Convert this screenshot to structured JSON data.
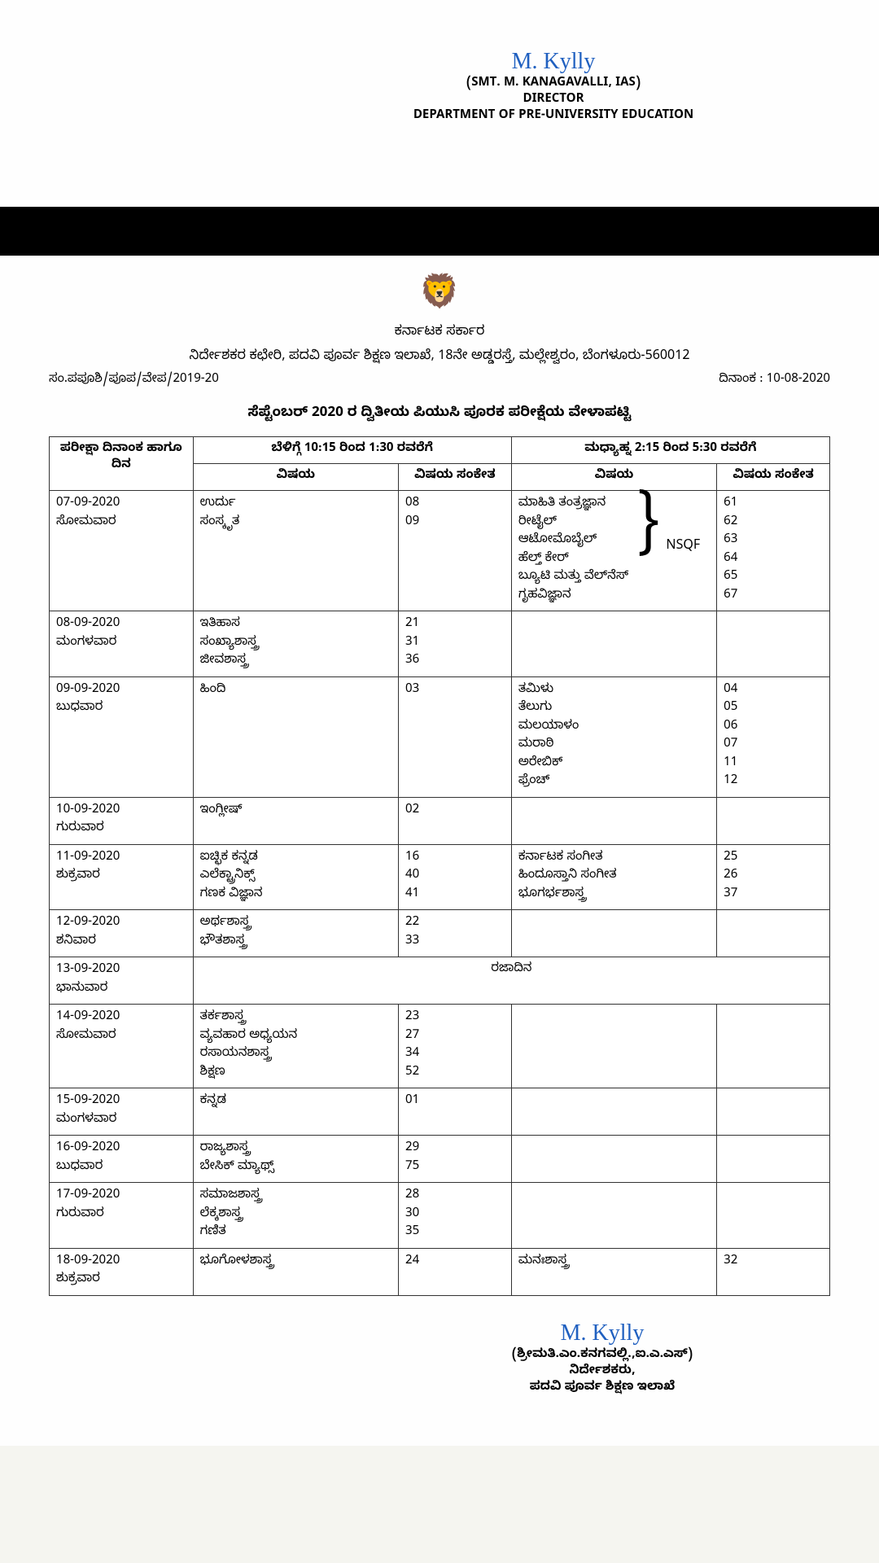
{
  "signature_top": {
    "signature_text": "M. Kylly",
    "name": "(SMT. M. KANAGAVALLI, IAS)",
    "title": "DIRECTOR",
    "department": "DEPARTMENT OF PRE-UNIVERSITY EDUCATION"
  },
  "header": {
    "govt": "ಕರ್ನಾಟಕ ಸರ್ಕಾರ",
    "office": "ನಿರ್ದೇಶಕರ ಕಛೇರಿ, ಪದವಿ ಪೂರ್ವ ಶಿಕ್ಷಣ ಇಲಾಖೆ, 18ನೇ ಅಡ್ಡರಸ್ತೆ, ಮಲ್ಲೇಶ್ವರಂ, ಬೆಂಗಳೂರು-560012",
    "ref": "ಸಂ.ಪಪೂಶಿ/ಪೂಪ/ವೇಪ/2019-20",
    "date_label": "ದಿನಾಂಕ : 10-08-2020",
    "title": "ಸೆಪ್ಟೆಂಬರ್ 2020 ರ ದ್ವಿತೀಯ ಪಿಯುಸಿ ಪೂರಕ ಪರೀಕ್ಷೆಯ ವೇಳಾಪಟ್ಟಿ"
  },
  "table": {
    "columns": {
      "date_header": "ಪರೀಕ್ಷಾ ದಿನಾಂಕ ಹಾಗೂ ದಿನ",
      "morning_header": "ಬೆಳಿಗ್ಗೆ 10:15 ರಿಂದ 1:30 ರವರೆಗೆ",
      "afternoon_header": "ಮಧ್ಯಾಹ್ನ 2:15 ರಿಂದ 5:30 ರವರೆಗೆ",
      "subject": "ವಿಷಯ",
      "code": "ವಿಷಯ ಸಂಕೇತ"
    },
    "rows": [
      {
        "date": "07-09-2020",
        "day": "ಸೋಮವಾರ",
        "morning_subjects": "ಉರ್ದು\nಸಂಸ್ಕೃತ",
        "morning_codes": "08\n09",
        "afternoon_subjects": "ಮಾಹಿತಿ ತಂತ್ರಜ್ಞಾನ\nರೀಟೈಲ್\nಆಟೋಮೊಬೈಲ್\nಹೆಲ್ತ್ ಕೇರ್\nಬ್ಯೂಟಿ ಮತ್ತು ವೆಲ್‌ನೆಸ್\nಗೃಹವಿಜ್ಞಾನ",
        "afternoon_nsqf": "NSQF",
        "afternoon_codes": "61\n62\n63\n64\n65\n67"
      },
      {
        "date": "08-09-2020",
        "day": "ಮಂಗಳವಾರ",
        "morning_subjects": "ಇತಿಹಾಸ\nಸಂಖ್ಯಾಶಾಸ್ತ್ರ\nಜೀವಶಾಸ್ತ್ರ",
        "morning_codes": "21\n31\n36",
        "afternoon_subjects": "",
        "afternoon_codes": ""
      },
      {
        "date": "09-09-2020",
        "day": "ಬುಧವಾರ",
        "morning_subjects": "ಹಿಂದಿ",
        "morning_codes": "03",
        "afternoon_subjects": "ತಮಿಳು\nತೆಲುಗು\nಮಲಯಾಳಂ\nಮರಾಠಿ\nಅರೇಬಿಕ್\nಫ್ರೆಂಚ್",
        "afternoon_codes": "04\n05\n06\n07\n11\n12"
      },
      {
        "date": "10-09-2020",
        "day": "ಗುರುವಾರ",
        "morning_subjects": "ಇಂಗ್ಲೀಷ್",
        "morning_codes": "02",
        "afternoon_subjects": "",
        "afternoon_codes": ""
      },
      {
        "date": "11-09-2020",
        "day": "ಶುಕ್ರವಾರ",
        "morning_subjects": "ಐಚ್ಛಿಕ ಕನ್ನಡ\nಎಲೆಕ್ಟ್ರಾನಿಕ್ಸ್\nಗಣಕ ವಿಜ್ಞಾನ",
        "morning_codes": "16\n40\n41",
        "afternoon_subjects": "ಕರ್ನಾಟಕ ಸಂಗೀತ\nಹಿಂದೂಸ್ತಾನಿ ಸಂಗೀತ\nಭೂಗರ್ಭಶಾಸ್ತ್ರ",
        "afternoon_codes": "25\n26\n37"
      },
      {
        "date": "12-09-2020",
        "day": "ಶನಿವಾರ",
        "morning_subjects": "ಅರ್ಥಶಾಸ್ತ್ರ\nಭೌತಶಾಸ್ತ್ರ",
        "morning_codes": "22\n33",
        "afternoon_subjects": "",
        "afternoon_codes": ""
      },
      {
        "date": "13-09-2020",
        "day": "ಭಾನುವಾರ",
        "holiday": "ರಜಾದಿನ"
      },
      {
        "date": "14-09-2020",
        "day": "ಸೋಮವಾರ",
        "morning_subjects": "ತರ್ಕಶಾಸ್ತ್ರ\nವ್ಯವಹಾರ ಅಧ್ಯಯನ\nರಸಾಯನಶಾಸ್ತ್ರ\nಶಿಕ್ಷಣ",
        "morning_codes": "23\n27\n34\n52",
        "afternoon_subjects": "",
        "afternoon_codes": ""
      },
      {
        "date": "15-09-2020",
        "day": "ಮಂಗಳವಾರ",
        "morning_subjects": "ಕನ್ನಡ",
        "morning_codes": "01",
        "afternoon_subjects": "",
        "afternoon_codes": ""
      },
      {
        "date": "16-09-2020",
        "day": "ಬುಧವಾರ",
        "morning_subjects": "ರಾಜ್ಯಶಾಸ್ತ್ರ\nಬೇಸಿಕ್ ಮ್ಯಾಥ್ಸ್",
        "morning_codes": "29\n75",
        "afternoon_subjects": "",
        "afternoon_codes": ""
      },
      {
        "date": "17-09-2020",
        "day": "ಗುರುವಾರ",
        "morning_subjects": "ಸಮಾಜಶಾಸ್ತ್ರ\nಲೆಕ್ಕಶಾಸ್ತ್ರ\nಗಣಿತ",
        "morning_codes": "28\n30\n35",
        "afternoon_subjects": "",
        "afternoon_codes": ""
      },
      {
        "date": "18-09-2020",
        "day": "ಶುಕ್ರವಾರ",
        "morning_subjects": "ಭೂಗೋಳಶಾಸ್ತ್ರ",
        "morning_codes": "24",
        "afternoon_subjects": "ಮನಃಶಾಸ್ತ್ರ",
        "afternoon_codes": "32"
      }
    ]
  },
  "signature_bottom": {
    "signature_text": "M. Kylly",
    "name": "(ಶ್ರೀಮತಿ.ಎಂ.ಕನಗವಲ್ಲಿ.,ಐ.ಎ.ಎಸ್)",
    "title": "ನಿರ್ದೇಶಕರು,",
    "department": "ಪದವಿ ಪೂರ್ವ ಶಿಕ್ಷಣ ಇಲಾಖೆ"
  }
}
